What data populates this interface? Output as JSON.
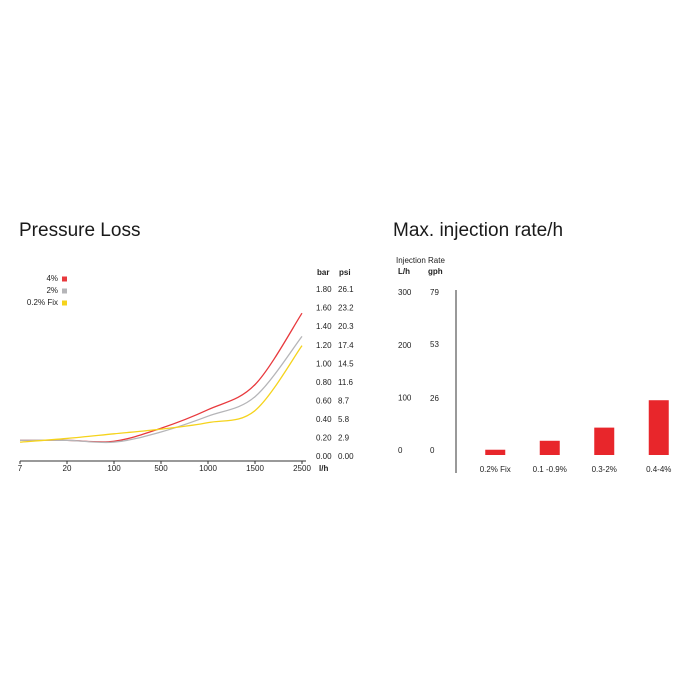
{
  "chart_data": [
    {
      "type": "line",
      "title": "Pressure Loss",
      "categories": [
        "7",
        "20",
        "100",
        "500",
        "1000",
        "1500",
        "2500"
      ],
      "xlabel": "l/h",
      "ylabel": "bar",
      "y2label": "psi",
      "series": [
        {
          "name": "4%",
          "color": "#e8393d",
          "values": [
            0.18,
            0.18,
            0.17,
            0.31,
            0.51,
            0.78,
            1.55
          ]
        },
        {
          "name": "2%",
          "color": "#b5b5b8",
          "values": [
            0.18,
            0.18,
            0.16,
            0.27,
            0.44,
            0.65,
            1.3
          ]
        },
        {
          "name": "0.2% Fix",
          "color": "#f5d31c",
          "values": [
            0.16,
            0.2,
            0.25,
            0.3,
            0.37,
            0.5,
            1.2
          ]
        }
      ],
      "ylim": [
        0,
        1.8
      ],
      "yticks": [
        {
          "value": 0,
          "label": "0.00"
        },
        {
          "value": 0.2,
          "label": "0.20"
        },
        {
          "value": 0.4,
          "label": "0.40"
        },
        {
          "value": 0.6,
          "label": "0.60"
        },
        {
          "value": 0.8,
          "label": "0.80"
        },
        {
          "value": 1.0,
          "label": "1.00"
        },
        {
          "value": 1.2,
          "label": "1.20"
        },
        {
          "value": 1.4,
          "label": "1.40"
        },
        {
          "value": 1.6,
          "label": "1.60"
        },
        {
          "value": 1.8,
          "label": "1.80"
        }
      ],
      "y2lim": [
        0,
        26.1
      ],
      "y2ticks": [
        {
          "value": 0,
          "label": "0.00"
        },
        2.9,
        5.8,
        8.7,
        11.6,
        14.5,
        17.4,
        20.3,
        23.2,
        26.1
      ]
    },
    {
      "type": "bar",
      "title": "Max. injection rate/h",
      "axis_title": "Injection Rate",
      "ylabel": "L/h",
      "y2label": "gph",
      "categories": [
        "0.2% Fix",
        "0.1 -0.9%",
        "0.3-2%",
        "0.4-4%"
      ],
      "values": [
        10,
        27,
        52,
        104
      ],
      "color": "#e8262b",
      "ylim": [
        0,
        300
      ],
      "yticks": [
        0,
        100,
        200,
        300
      ],
      "y2lim": [
        0,
        79
      ],
      "y2ticks": [
        0,
        26,
        53,
        79
      ]
    }
  ]
}
